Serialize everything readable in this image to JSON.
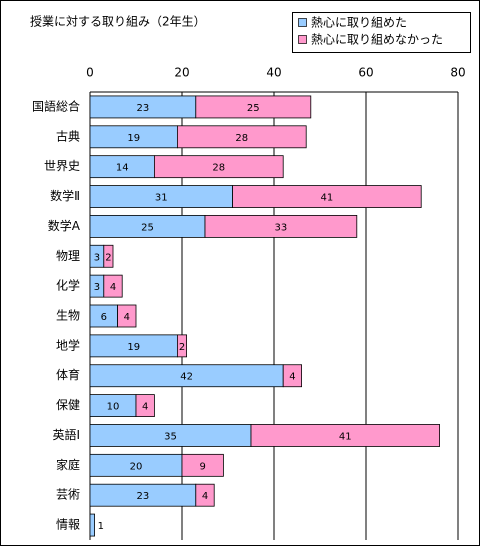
{
  "chart_data": {
    "type": "stacked-bar-horizontal",
    "title": "授業に対する取り組み（2年生）",
    "categories": [
      "国語総合",
      "古典",
      "世界史",
      "数学Ⅱ",
      "数学A",
      "物理",
      "化学",
      "生物",
      "地学",
      "体育",
      "保健",
      "英語Ⅰ",
      "家庭",
      "芸術",
      "情報"
    ],
    "series": [
      {
        "name": "熱心に取り組めた",
        "color": "#99ccff",
        "values": [
          23,
          19,
          14,
          31,
          25,
          3,
          3,
          6,
          19,
          42,
          10,
          35,
          20,
          23,
          1
        ]
      },
      {
        "name": "熱心に取り組めなかった",
        "color": "#ff99cc",
        "values": [
          25,
          28,
          28,
          41,
          33,
          2,
          4,
          4,
          2,
          4,
          4,
          41,
          9,
          4,
          null
        ]
      }
    ],
    "xlim": [
      0,
      80
    ],
    "xticks": [
      0,
      20,
      40,
      60,
      80
    ],
    "grid": true,
    "legend": "top-right"
  }
}
